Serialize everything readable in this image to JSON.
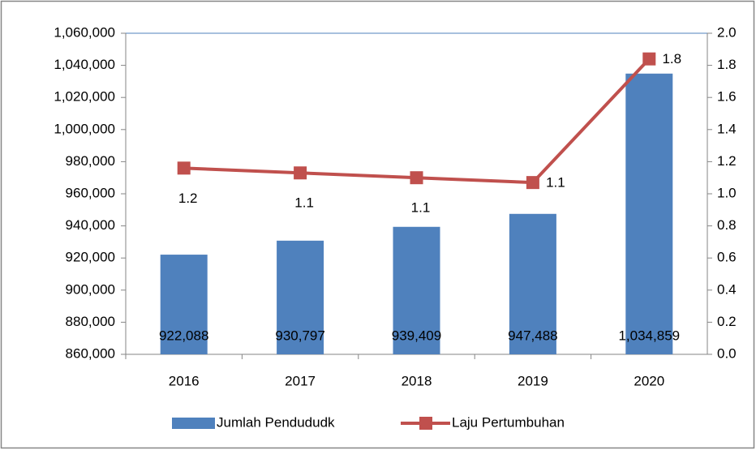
{
  "chart_data": {
    "type": "bar_line",
    "categories": [
      "2016",
      "2017",
      "2018",
      "2019",
      "2020"
    ],
    "series": [
      {
        "name": "Jumlah Pendududk",
        "color": "#4f81bd",
        "type": "bar",
        "values": [
          922088,
          930797,
          939409,
          947488,
          1034859
        ],
        "value_labels": [
          "922,088",
          "930,797",
          "939,409",
          "947,488",
          "1,034,859"
        ]
      },
      {
        "name": "Laju Pertumbuhan",
        "color": "#c0504d",
        "type": "line",
        "axis": "y2",
        "values": [
          1.16,
          1.13,
          1.1,
          1.07,
          1.84
        ],
        "value_labels": [
          "1.2",
          "1.1",
          "1.1",
          "1.1",
          "1.8"
        ]
      }
    ],
    "ylim": [
      860000,
      1060000
    ],
    "yticks": [
      {
        "value": 860000,
        "label": "860,000"
      },
      {
        "value": 880000,
        "label": "880,000"
      },
      {
        "value": 900000,
        "label": "900,000"
      },
      {
        "value": 920000,
        "label": "920,000"
      },
      {
        "value": 940000,
        "label": "940,000"
      },
      {
        "value": 960000,
        "label": "960,000"
      },
      {
        "value": 980000,
        "label": "980,000"
      },
      {
        "value": 1000000,
        "label": "1,000,000"
      },
      {
        "value": 1020000,
        "label": "1,020,000"
      },
      {
        "value": 1040000,
        "label": "1,040,000"
      },
      {
        "value": 1060000,
        "label": "1,060,000"
      }
    ],
    "y2lim": [
      0,
      2
    ],
    "y2ticks": [
      {
        "value": 0,
        "label": "0.0"
      },
      0.2,
      0.4,
      0.6,
      0.8,
      {
        "value": 1,
        "label": "1.0"
      },
      1.2,
      1.4,
      1.6,
      1.8,
      {
        "value": 2,
        "label": "2.0"
      }
    ],
    "legend": "bottom"
  }
}
